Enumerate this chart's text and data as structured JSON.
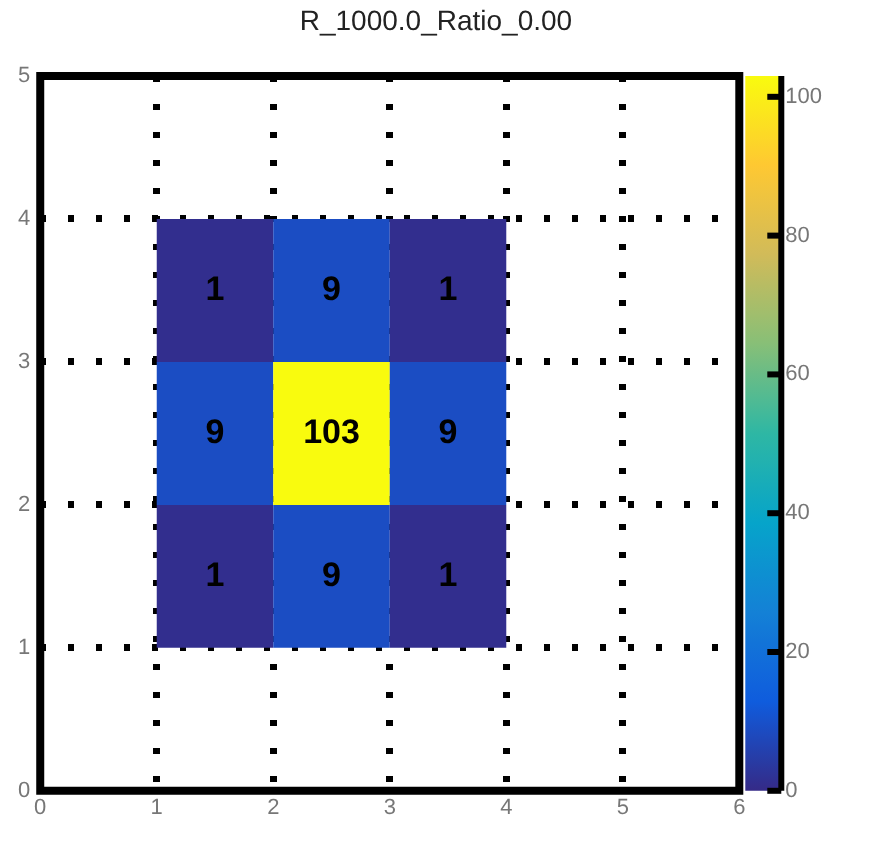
{
  "chart_data": {
    "type": "heatmap",
    "title": "R_1000.0_Ratio_0.00",
    "x": [
      1.5,
      2.5,
      3.5
    ],
    "y": [
      3.5,
      2.5,
      1.5
    ],
    "cells": [
      [
        1,
        9,
        1
      ],
      [
        9,
        103,
        9
      ],
      [
        1,
        9,
        1
      ]
    ],
    "xlim": [
      0,
      6
    ],
    "xticks": [
      0,
      1,
      2,
      3,
      4,
      5,
      6
    ],
    "ylim": [
      0,
      5
    ],
    "yticks": [
      0,
      1,
      2,
      3,
      4,
      5
    ],
    "clim": [
      0,
      103
    ],
    "cticks": [
      0,
      20,
      40,
      60,
      80,
      100
    ],
    "grid": true,
    "data_labels": true
  }
}
